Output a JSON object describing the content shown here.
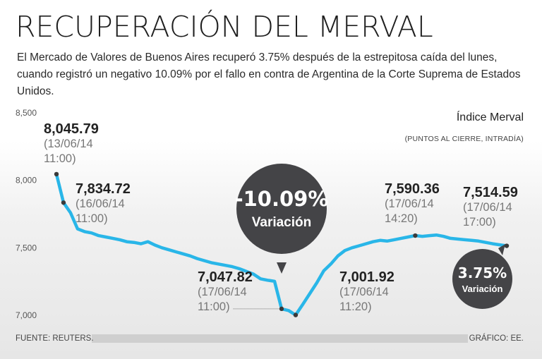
{
  "header": {
    "title": "RECUPERACIÓN DEL MERVAL",
    "subtitle": "El Mercado de Valores de Buenos Aires recuperó 3.75% después de la estrepitosa caída del lunes, cuando registró un negativo 10.09% por el fallo en contra de Argentina de la Corte Suprema de Estados Unidos."
  },
  "legend": {
    "series_name": "Índice Merval",
    "series_note": "(PUNTOS AL CIERRE, INTRADÍA)"
  },
  "colors": {
    "line": "#29b6e8",
    "marker": "#3a3a3a",
    "bubble": "#444447"
  },
  "chart_data": {
    "type": "line",
    "ylim": [
      7000,
      8500
    ],
    "yticks": [
      "8,500",
      "8,000",
      "7,500",
      "7,000"
    ],
    "ytick_values": [
      8500,
      8000,
      7500,
      7000
    ],
    "series": [
      {
        "values": [
          8045.79,
          7834.72,
          7760,
          7640,
          7620,
          7610,
          7590,
          7580,
          7570,
          7560,
          7545,
          7540,
          7530,
          7545,
          7520,
          7500,
          7485,
          7470,
          7455,
          7440,
          7420,
          7405,
          7390,
          7380,
          7370,
          7360,
          7345,
          7325,
          7305,
          7270,
          7260,
          7252,
          7047.82,
          7035,
          7001.92,
          7080,
          7160,
          7240,
          7330,
          7380,
          7440,
          7480,
          7500,
          7515,
          7530,
          7545,
          7555,
          7550,
          7560,
          7570,
          7580,
          7590.36,
          7585,
          7590,
          7595,
          7585,
          7570,
          7565,
          7560,
          7555,
          7550,
          7540,
          7530,
          7522,
          7514.59
        ]
      }
    ],
    "annotations": [
      {
        "value": "8,045.79",
        "date": "(13/06/14",
        "time": "11:00)"
      },
      {
        "value": "7,834.72",
        "date": "(16/06/14",
        "time": "11:00)"
      },
      {
        "value": "7,047.82",
        "date": "(17/06/14",
        "time": "11:00)"
      },
      {
        "value": "7,001.92",
        "date": "(17/06/14",
        "time": "11:20)"
      },
      {
        "value": "7,590.36",
        "date": "(17/06/14",
        "time": "14:20)"
      },
      {
        "value": "7,514.59",
        "date": "(17/06/14",
        "time": "17:00)"
      }
    ],
    "highlights": [
      {
        "pct": "-10.09%",
        "label": "Variación"
      },
      {
        "pct": "3.75%",
        "label": "Variación"
      }
    ]
  },
  "footer": {
    "source": "FUENTE: REUTERS.",
    "credit": "GRÁFICO: EE."
  }
}
